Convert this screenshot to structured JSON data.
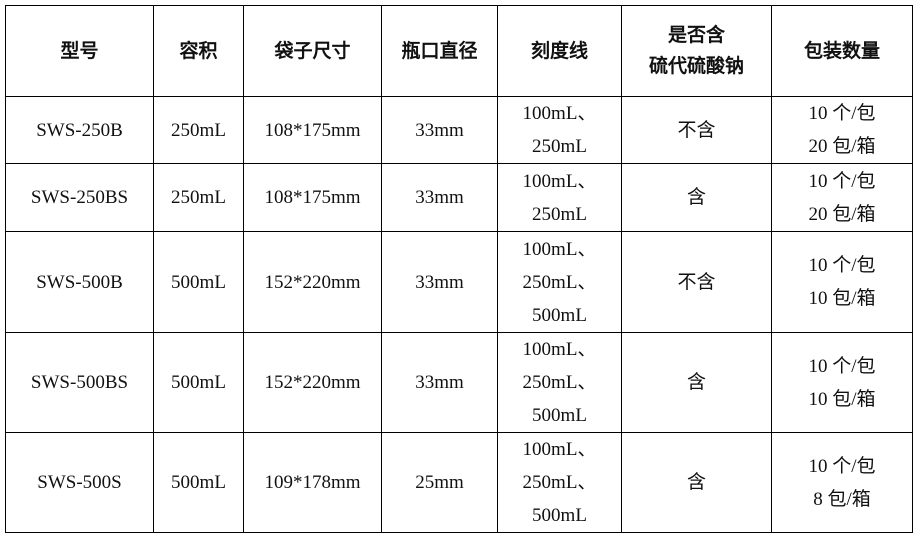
{
  "headers": [
    "型号",
    "容积",
    "袋子尺寸",
    "瓶口直径",
    "刻度线",
    [
      "是否含",
      "硫代硫酸钠"
    ],
    "包装数量"
  ],
  "rows": [
    {
      "model": "SWS-250B",
      "volume": "250mL",
      "bag_size": "108*175mm",
      "mouth": "33mm",
      "scale": [
        "100mL、",
        "250mL"
      ],
      "thiosulfate": "不含",
      "packing": [
        "10 个/包",
        "20 包/箱"
      ]
    },
    {
      "model": "SWS-250BS",
      "volume": "250mL",
      "bag_size": "108*175mm",
      "mouth": "33mm",
      "scale": [
        "100mL、",
        "250mL"
      ],
      "thiosulfate": "含",
      "packing": [
        "10 个/包",
        "20 包/箱"
      ]
    },
    {
      "model": "SWS-500B",
      "volume": "500mL",
      "bag_size": "152*220mm",
      "mouth": "33mm",
      "scale": [
        "100mL、",
        "250mL、",
        "500mL"
      ],
      "thiosulfate": "不含",
      "packing": [
        "10 个/包",
        "10 包/箱"
      ]
    },
    {
      "model": "SWS-500BS",
      "volume": "500mL",
      "bag_size": "152*220mm",
      "mouth": "33mm",
      "scale": [
        "100mL、",
        "250mL、",
        "500mL"
      ],
      "thiosulfate": "含",
      "packing": [
        "10 个/包",
        "10 包/箱"
      ]
    },
    {
      "model": "SWS-500S",
      "volume": "500mL",
      "bag_size": "109*178mm",
      "mouth": "25mm",
      "scale": [
        "100mL、",
        "250mL、",
        "500mL"
      ],
      "thiosulfate": "含",
      "packing": [
        "10 个/包",
        "8 包/箱"
      ]
    }
  ]
}
